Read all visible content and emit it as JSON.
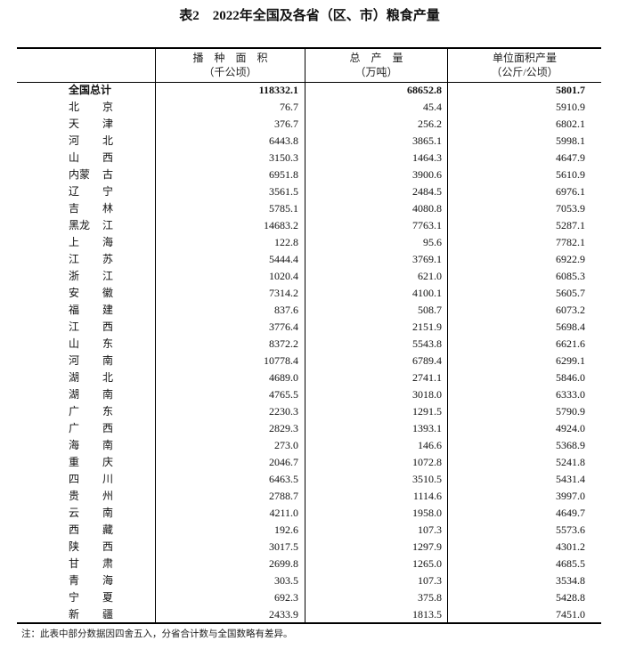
{
  "title": "表2　2022年全国及各省（区、市）粮食产量",
  "headers": [
    {
      "line1": "播　种　面　积",
      "line2": "（千公顷）"
    },
    {
      "line1": "总　产　量",
      "line2": "（万吨）"
    },
    {
      "line1": "单位面积产量",
      "line2": "（公斤/公顷）"
    }
  ],
  "total": {
    "name": "全国总计",
    "area": "118332.1",
    "output": "68652.8",
    "yield": "5801.7"
  },
  "rows": [
    {
      "name": "北京",
      "area": "76.7",
      "output": "45.4",
      "yield": "5910.9"
    },
    {
      "name": "天津",
      "area": "376.7",
      "output": "256.2",
      "yield": "6802.1"
    },
    {
      "name": "河北",
      "area": "6443.8",
      "output": "3865.1",
      "yield": "5998.1"
    },
    {
      "name": "山西",
      "area": "3150.3",
      "output": "1464.3",
      "yield": "4647.9"
    },
    {
      "name": "内蒙古",
      "area": "6951.8",
      "output": "3900.6",
      "yield": "5610.9"
    },
    {
      "name": "辽宁",
      "area": "3561.5",
      "output": "2484.5",
      "yield": "6976.1"
    },
    {
      "name": "吉林",
      "area": "5785.1",
      "output": "4080.8",
      "yield": "7053.9"
    },
    {
      "name": "黑龙江",
      "area": "14683.2",
      "output": "7763.1",
      "yield": "5287.1"
    },
    {
      "name": "上海",
      "area": "122.8",
      "output": "95.6",
      "yield": "7782.1"
    },
    {
      "name": "江苏",
      "area": "5444.4",
      "output": "3769.1",
      "yield": "6922.9"
    },
    {
      "name": "浙江",
      "area": "1020.4",
      "output": "621.0",
      "yield": "6085.3"
    },
    {
      "name": "安徽",
      "area": "7314.2",
      "output": "4100.1",
      "yield": "5605.7"
    },
    {
      "name": "福建",
      "area": "837.6",
      "output": "508.7",
      "yield": "6073.2"
    },
    {
      "name": "江西",
      "area": "3776.4",
      "output": "2151.9",
      "yield": "5698.4"
    },
    {
      "name": "山东",
      "area": "8372.2",
      "output": "5543.8",
      "yield": "6621.6"
    },
    {
      "name": "河南",
      "area": "10778.4",
      "output": "6789.4",
      "yield": "6299.1"
    },
    {
      "name": "湖北",
      "area": "4689.0",
      "output": "2741.1",
      "yield": "5846.0"
    },
    {
      "name": "湖南",
      "area": "4765.5",
      "output": "3018.0",
      "yield": "6333.0"
    },
    {
      "name": "广东",
      "area": "2230.3",
      "output": "1291.5",
      "yield": "5790.9"
    },
    {
      "name": "广西",
      "area": "2829.3",
      "output": "1393.1",
      "yield": "4924.0"
    },
    {
      "name": "海南",
      "area": "273.0",
      "output": "146.6",
      "yield": "5368.9"
    },
    {
      "name": "重庆",
      "area": "2046.7",
      "output": "1072.8",
      "yield": "5241.8"
    },
    {
      "name": "四川",
      "area": "6463.5",
      "output": "3510.5",
      "yield": "5431.4"
    },
    {
      "name": "贵州",
      "area": "2788.7",
      "output": "1114.6",
      "yield": "3997.0"
    },
    {
      "name": "云南",
      "area": "4211.0",
      "output": "1958.0",
      "yield": "4649.7"
    },
    {
      "name": "西藏",
      "area": "192.6",
      "output": "107.3",
      "yield": "5573.6"
    },
    {
      "name": "陕西",
      "area": "3017.5",
      "output": "1297.9",
      "yield": "4301.2"
    },
    {
      "name": "甘肃",
      "area": "2699.8",
      "output": "1265.0",
      "yield": "4685.5"
    },
    {
      "name": "青海",
      "area": "303.5",
      "output": "107.3",
      "yield": "3534.8"
    },
    {
      "name": "宁夏",
      "area": "692.3",
      "output": "375.8",
      "yield": "5428.8"
    },
    {
      "name": "新疆",
      "area": "2433.9",
      "output": "1813.5",
      "yield": "7451.0"
    }
  ],
  "note": "注：此表中部分数据因四舍五入，分省合计数与全国数略有差异。"
}
